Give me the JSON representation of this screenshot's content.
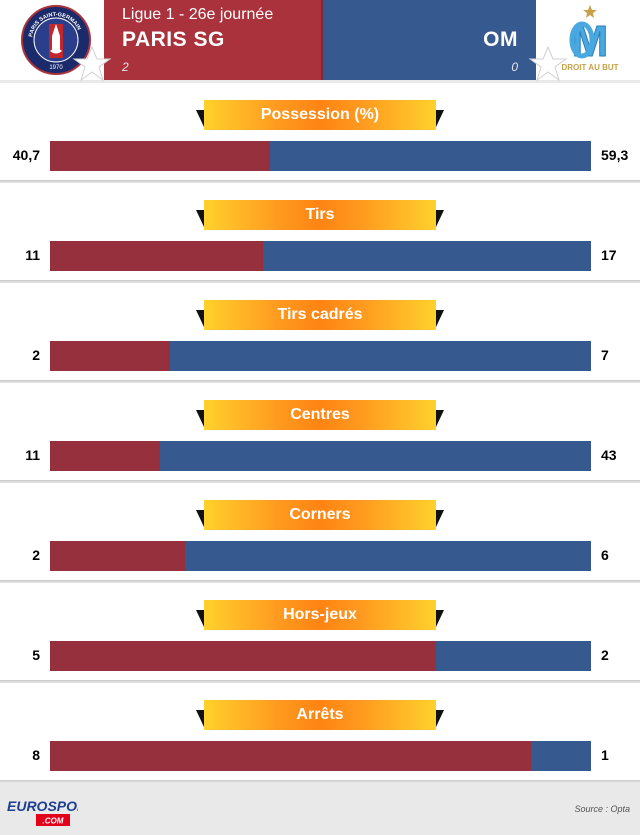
{
  "header": {
    "competition": "Ligue 1 - 26e journée",
    "home_team": "PARIS SG",
    "away_team": "OM",
    "home_score": "2",
    "away_score": "0",
    "home_logo_text_top": "PARIS SAINT-GERMAIN",
    "home_logo_year": "1970",
    "away_logo_text": "DROIT AU BUT"
  },
  "colors": {
    "home": "#95303c",
    "away": "#36598f",
    "label_bg": "#ff8413"
  },
  "chart_data": {
    "type": "bar",
    "orientation": "horizontal-stacked",
    "series": [
      {
        "name": "PARIS SG"
      },
      {
        "name": "OM"
      }
    ],
    "stats": [
      {
        "label": "Possession (%)",
        "home": "40,7",
        "away": "59,3",
        "home_value": 40.7,
        "away_value": 59.3
      },
      {
        "label": "Tirs",
        "home": "11",
        "away": "17",
        "home_value": 11,
        "away_value": 17
      },
      {
        "label": "Tirs cadrés",
        "home": "2",
        "away": "7",
        "home_value": 2,
        "away_value": 7
      },
      {
        "label": "Centres",
        "home": "11",
        "away": "43",
        "home_value": 11,
        "away_value": 43
      },
      {
        "label": "Corners",
        "home": "2",
        "away": "6",
        "home_value": 2,
        "away_value": 6
      },
      {
        "label": "Hors-jeux",
        "home": "5",
        "away": "2",
        "home_value": 5,
        "away_value": 2
      },
      {
        "label": "Arrêts",
        "home": "8",
        "away": "1",
        "home_value": 8,
        "away_value": 1
      }
    ]
  },
  "footer": {
    "brand_top": "EUROSPORT",
    "brand_bottom": ".COM",
    "source": "Source : Opta"
  }
}
